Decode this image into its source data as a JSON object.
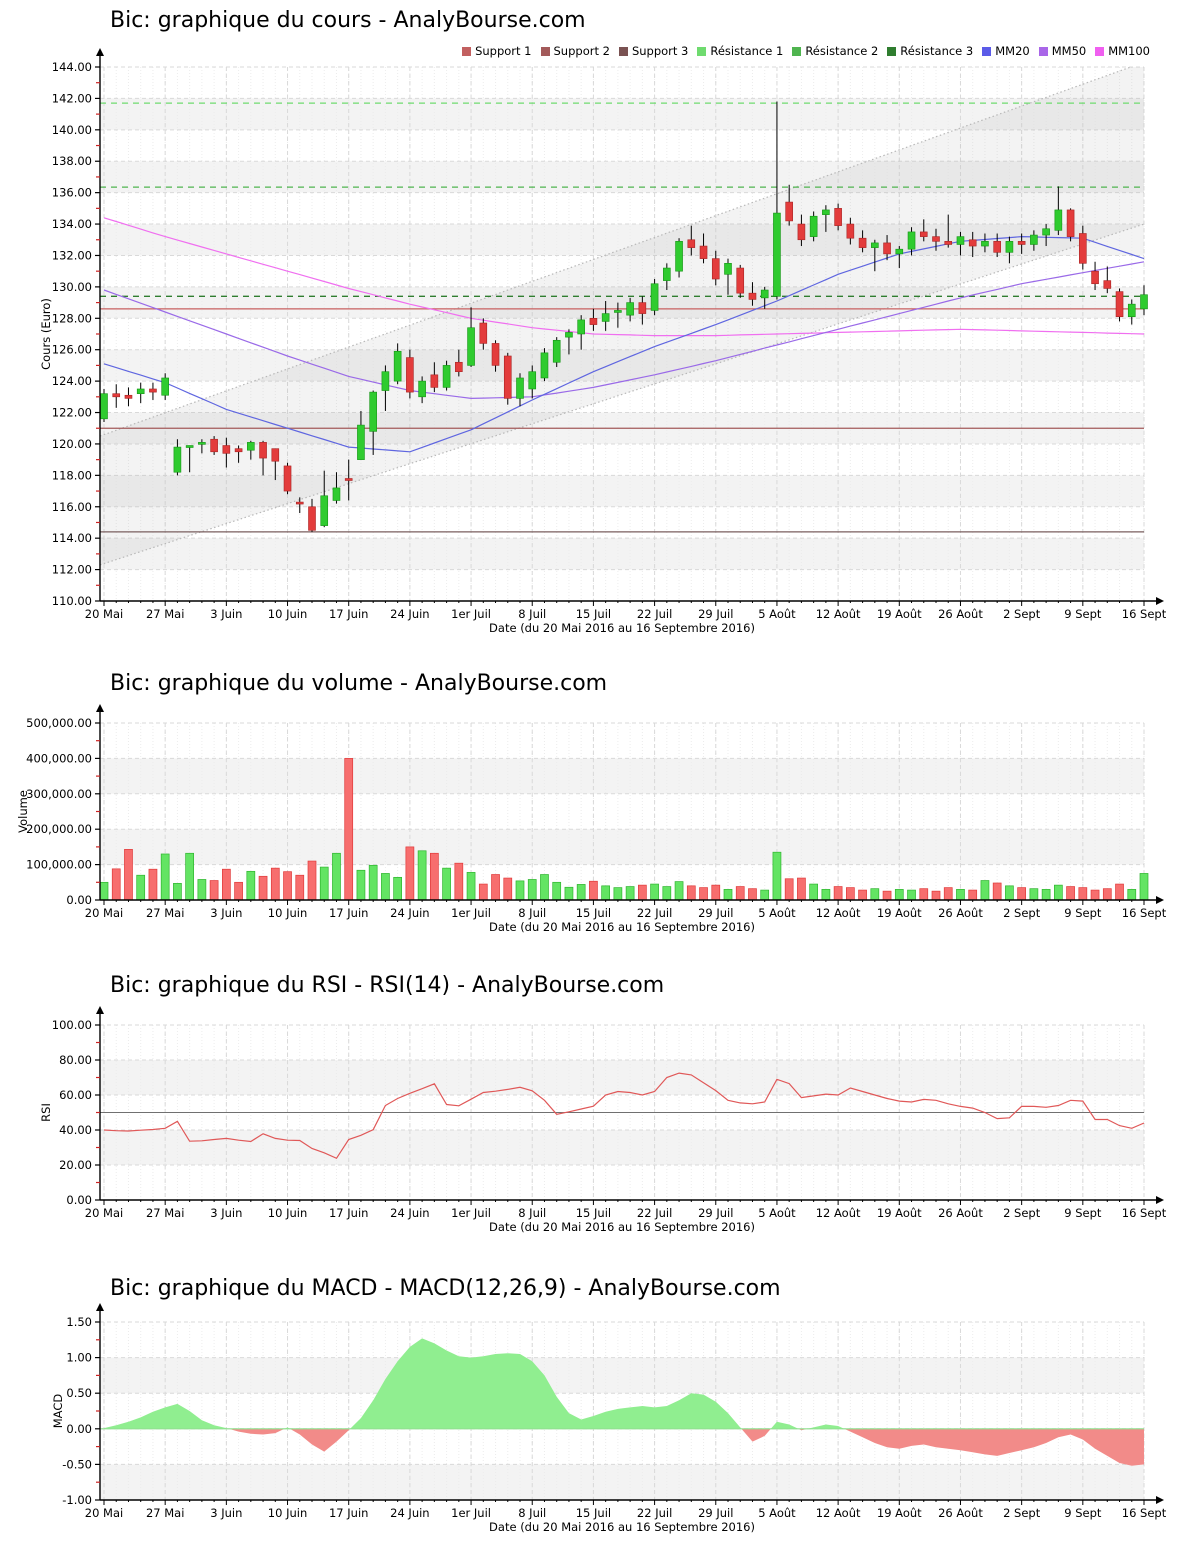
{
  "page": {
    "background": "#FFFFFF"
  },
  "axis": {
    "x_tick_labels": [
      "20 Mai",
      "27 Mai",
      "3 Juin",
      "10 Juin",
      "17 Juin",
      "24 Juin",
      "1er Juil",
      "8 Juil",
      "15 Juil",
      "22 Juil",
      "29 Juil",
      "5 Août",
      "12 Août",
      "19 Août",
      "26 Août",
      "2 Sept",
      "9 Sept",
      "16 Sept"
    ],
    "days_per_tick": 5,
    "xlabel": "Date (du 20 Mai 2016 au 16 Septembre 2016)"
  },
  "legend": {
    "items": [
      {
        "label": "Support 1",
        "color": "#C26060"
      },
      {
        "label": "Support 2",
        "color": "#A35A5A"
      },
      {
        "label": "Support 3",
        "color": "#7A5252"
      },
      {
        "label": "Résistance 1",
        "color": "#6FDB6F"
      },
      {
        "label": "Résistance 2",
        "color": "#4FB44F"
      },
      {
        "label": "Résistance 3",
        "color": "#2F7D2F"
      },
      {
        "label": "MM20",
        "color": "#5B5BE8"
      },
      {
        "label": "MM50",
        "color": "#A966E8"
      },
      {
        "label": "MM100",
        "color": "#F05FF0"
      }
    ]
  },
  "chart_data": [
    {
      "type": "candlestick",
      "title": "Bic: graphique du cours - AnalyBourse.com",
      "ylabel": "Cours (Euro)",
      "xlabel": "Date (du 20 Mai 2016 au 16 Septembre 2016)",
      "ylim": [
        110,
        144
      ],
      "ystep": 2,
      "shaded_bands": [
        [
          140,
          142
        ],
        [
          136,
          138
        ],
        [
          132,
          134
        ],
        [
          128,
          130
        ],
        [
          124,
          126
        ],
        [
          120,
          122
        ],
        [
          116,
          118
        ],
        [
          112,
          114
        ]
      ],
      "up_color": "#2FCB2F",
      "down_color": "#E33C3C",
      "ohlc": [
        [
          121.6,
          123.5,
          121.4,
          123.2
        ],
        [
          123.2,
          123.8,
          122.3,
          123.0
        ],
        [
          123.1,
          123.6,
          122.4,
          122.9
        ],
        [
          123.2,
          123.9,
          122.6,
          123.5
        ],
        [
          123.5,
          123.9,
          122.8,
          123.3
        ],
        [
          123.1,
          124.5,
          122.8,
          124.2
        ],
        [
          118.2,
          120.3,
          118.0,
          119.8
        ],
        [
          119.8,
          119.9,
          118.2,
          119.9
        ],
        [
          120.0,
          120.3,
          119.4,
          120.1
        ],
        [
          120.3,
          120.5,
          119.3,
          119.5
        ],
        [
          119.9,
          120.4,
          118.5,
          119.4
        ],
        [
          119.7,
          119.9,
          118.8,
          119.5
        ],
        [
          119.6,
          120.2,
          119.0,
          120.1
        ],
        [
          120.1,
          120.2,
          118.0,
          119.1
        ],
        [
          119.7,
          119.7,
          117.7,
          118.9
        ],
        [
          118.6,
          118.8,
          116.8,
          117.0
        ],
        [
          116.3,
          116.6,
          115.6,
          116.2
        ],
        [
          116.0,
          116.5,
          114.4,
          114.5
        ],
        [
          114.8,
          118.3,
          114.7,
          116.7
        ],
        [
          116.4,
          118.2,
          116.2,
          117.2
        ],
        [
          117.8,
          119.0,
          116.4,
          117.7
        ],
        [
          119.0,
          122.1,
          119.0,
          121.2
        ],
        [
          120.8,
          123.4,
          119.3,
          123.3
        ],
        [
          123.4,
          125.0,
          122.1,
          124.6
        ],
        [
          124.0,
          126.4,
          123.8,
          125.9
        ],
        [
          125.5,
          126.0,
          122.9,
          123.3
        ],
        [
          123.0,
          124.3,
          122.6,
          124.0
        ],
        [
          124.4,
          125.2,
          123.3,
          123.6
        ],
        [
          123.6,
          125.3,
          123.4,
          125.0
        ],
        [
          125.2,
          126.0,
          124.3,
          124.6
        ],
        [
          125.0,
          128.7,
          124.9,
          127.4
        ],
        [
          127.7,
          128.0,
          126.0,
          126.4
        ],
        [
          126.4,
          126.6,
          124.6,
          125.0
        ],
        [
          125.6,
          125.8,
          122.5,
          122.9
        ],
        [
          122.9,
          124.5,
          122.4,
          124.2
        ],
        [
          123.5,
          125.0,
          122.9,
          124.6
        ],
        [
          124.2,
          126.1,
          124.0,
          125.8
        ],
        [
          125.2,
          126.8,
          124.9,
          126.6
        ],
        [
          126.8,
          127.3,
          125.7,
          127.1
        ],
        [
          127.0,
          128.2,
          126.0,
          127.9
        ],
        [
          128.0,
          128.6,
          127.2,
          127.6
        ],
        [
          127.8,
          129.1,
          127.2,
          128.3
        ],
        [
          128.4,
          129.0,
          127.4,
          128.5
        ],
        [
          128.2,
          129.3,
          127.8,
          129.0
        ],
        [
          129.0,
          129.4,
          127.6,
          128.3
        ],
        [
          128.5,
          130.5,
          128.2,
          130.2
        ],
        [
          130.4,
          131.5,
          129.8,
          131.2
        ],
        [
          131.0,
          133.1,
          130.6,
          132.9
        ],
        [
          133.0,
          133.9,
          132.0,
          132.5
        ],
        [
          132.6,
          133.4,
          131.5,
          131.8
        ],
        [
          131.8,
          132.3,
          130.1,
          130.5
        ],
        [
          130.8,
          131.8,
          129.5,
          131.5
        ],
        [
          131.2,
          131.4,
          129.3,
          129.6
        ],
        [
          129.6,
          130.3,
          128.8,
          129.2
        ],
        [
          129.3,
          130.0,
          128.6,
          129.8
        ],
        [
          129.4,
          141.8,
          129.2,
          134.7
        ],
        [
          135.4,
          136.5,
          133.9,
          134.2
        ],
        [
          134.0,
          134.6,
          132.6,
          133.0
        ],
        [
          133.2,
          134.8,
          132.9,
          134.5
        ],
        [
          134.6,
          135.2,
          133.5,
          134.9
        ],
        [
          135.0,
          135.3,
          133.6,
          133.9
        ],
        [
          134.0,
          134.4,
          132.7,
          133.1
        ],
        [
          133.1,
          133.6,
          132.2,
          132.5
        ],
        [
          132.5,
          133.0,
          131.0,
          132.8
        ],
        [
          132.8,
          133.3,
          131.7,
          132.1
        ],
        [
          132.1,
          132.6,
          131.2,
          132.4
        ],
        [
          132.4,
          133.8,
          132.0,
          133.5
        ],
        [
          133.5,
          134.3,
          132.9,
          133.2
        ],
        [
          133.2,
          133.7,
          132.3,
          132.9
        ],
        [
          132.9,
          134.6,
          132.5,
          132.7
        ],
        [
          132.7,
          133.5,
          132.0,
          133.2
        ],
        [
          133.0,
          133.5,
          131.9,
          132.6
        ],
        [
          132.6,
          133.4,
          132.2,
          132.9
        ],
        [
          132.9,
          133.4,
          131.9,
          132.2
        ],
        [
          132.2,
          133.2,
          131.5,
          132.9
        ],
        [
          132.9,
          133.4,
          132.1,
          132.7
        ],
        [
          132.7,
          133.6,
          132.3,
          133.3
        ],
        [
          133.3,
          134.0,
          132.6,
          133.7
        ],
        [
          133.6,
          136.4,
          133.3,
          134.9
        ],
        [
          134.9,
          135.0,
          132.9,
          133.2
        ],
        [
          133.4,
          133.9,
          131.1,
          131.5
        ],
        [
          131.0,
          131.6,
          129.8,
          130.2
        ],
        [
          130.4,
          131.3,
          129.6,
          129.9
        ],
        [
          129.7,
          129.9,
          127.8,
          128.1
        ],
        [
          128.1,
          129.2,
          127.6,
          128.9
        ],
        [
          128.6,
          130.1,
          128.2,
          129.5
        ]
      ],
      "overlays": {
        "supports": [
          {
            "label": "Support 1",
            "value": 128.6,
            "color": "#C86060"
          },
          {
            "label": "Support 2",
            "value": 121.0,
            "color": "#A35A5A"
          },
          {
            "label": "Support 3",
            "value": 114.4,
            "color": "#7A5F5F"
          }
        ],
        "resistances": [
          {
            "label": "Résistance 1",
            "value": 141.7,
            "color": "#6FDB6F"
          },
          {
            "label": "Résistance 2",
            "value": 136.35,
            "color": "#4FB44F"
          },
          {
            "label": "Résistance 3",
            "value": 129.4,
            "color": "#2F7D2F"
          }
        ],
        "mm20": {
          "label": "MM20",
          "color": "#5F66E0",
          "weekly_values": [
            125.1,
            123.9,
            122.2,
            121.0,
            119.8,
            119.5,
            120.9,
            122.8,
            124.6,
            126.2,
            127.6,
            129.1,
            130.8,
            132.1,
            132.9,
            133.2,
            133.1,
            131.8
          ]
        },
        "mm50": {
          "label": "MM50",
          "color": "#9A6AE8",
          "weekly_values": [
            129.8,
            128.4,
            127.0,
            125.6,
            124.3,
            123.4,
            122.9,
            123.0,
            123.6,
            124.4,
            125.3,
            126.3,
            127.3,
            128.3,
            129.3,
            130.2,
            130.9,
            131.6
          ]
        },
        "mm100": {
          "label": "MM100",
          "color": "#F06FF0",
          "weekly_values": [
            134.4,
            133.2,
            132.1,
            131.0,
            129.9,
            128.9,
            128.0,
            127.4,
            127.0,
            126.9,
            126.9,
            127.0,
            127.1,
            127.2,
            127.3,
            127.2,
            127.1,
            127.0
          ]
        },
        "trend_channel": {
          "color": "#B8B8B8",
          "fill": "rgba(170,170,170,0.14)",
          "lines": [
            {
              "start_value": 112.3,
              "end_value": 134.0
            },
            {
              "start_value": 120.5,
              "end_value": 144.3
            }
          ]
        }
      }
    },
    {
      "type": "bar",
      "title": "Bic: graphique du volume - AnalyBourse.com",
      "ylabel": "Volume",
      "xlabel": "Date (du 20 Mai 2016 au 16 Septembre 2016)",
      "ylim": [
        0,
        500000
      ],
      "ystep": 100000,
      "shaded_bands": [
        [
          100000,
          200000
        ],
        [
          300000,
          400000
        ]
      ],
      "up_color": "#63E463",
      "up_stroke": "#2FB52F",
      "down_color": "#F76E6E",
      "down_stroke": "#E03A3A",
      "values": [
        50000,
        88000,
        143000,
        70000,
        87000,
        130000,
        47000,
        132000,
        58000,
        55000,
        87000,
        50000,
        81000,
        67000,
        90000,
        80000,
        70000,
        110000,
        93000,
        132000,
        400000,
        84000,
        98000,
        75000,
        64000,
        150000,
        139000,
        132000,
        90000,
        104000,
        78000,
        45000,
        72000,
        62000,
        54000,
        58000,
        72000,
        50000,
        36000,
        44000,
        53000,
        40000,
        35000,
        38000,
        42000,
        45000,
        38000,
        52000,
        40000,
        35000,
        42000,
        30000,
        38000,
        32000,
        28000,
        135000,
        60000,
        62000,
        45000,
        30000,
        38000,
        35000,
        28000,
        32000,
        25000,
        30000,
        28000,
        32000,
        25000,
        35000,
        30000,
        28000,
        55000,
        48000,
        40000,
        35000,
        32000,
        30000,
        42000,
        38000,
        35000,
        28000,
        32000,
        45000,
        30000,
        75000
      ]
    },
    {
      "type": "line",
      "title": "Bic: graphique du RSI - RSI(14) - AnalyBourse.com",
      "ylabel": "RSI",
      "xlabel": "Date (du 20 Mai 2016 au 16 Septembre 2016)",
      "ylim": [
        0,
        100
      ],
      "ystep": 20,
      "shaded_bands": [
        [
          20,
          40
        ],
        [
          60,
          80
        ]
      ],
      "line_color": "#E05858",
      "midline": {
        "value": 50,
        "color": "#707070"
      },
      "values": [
        40,
        39.6,
        39.4,
        39.9,
        40.3,
        41,
        45,
        33.6,
        33.8,
        34.6,
        35.2,
        34.2,
        33.4,
        37.8,
        35.2,
        34.2,
        34,
        29.4,
        27,
        23.8,
        34.6,
        37,
        40.2,
        54,
        58,
        61,
        63.6,
        66.4,
        54.6,
        53.8,
        57.6,
        61.4,
        62.2,
        63.2,
        64.4,
        62.4,
        57,
        49,
        50.4,
        52,
        53.6,
        60,
        62,
        61.4,
        60,
        62,
        70,
        72.5,
        71.5,
        67,
        62.5,
        57,
        55.5,
        55,
        56,
        69,
        66.5,
        58.5,
        59.5,
        60.5,
        60,
        64,
        62,
        60,
        58,
        56.5,
        56,
        57.5,
        57,
        55,
        53.5,
        52.5,
        50,
        46.5,
        47,
        53.5,
        53.5,
        53,
        54,
        57,
        56.5,
        46,
        46,
        42.5,
        41,
        44
      ]
    },
    {
      "type": "area",
      "title": "Bic: graphique du MACD - MACD(12,26,9) - AnalyBourse.com",
      "ylabel": "MACD",
      "xlabel": "Date (du 20 Mai 2016 au 16 Septembre 2016)",
      "ylim": [
        -1,
        1.5
      ],
      "ystep": 0.5,
      "shaded_bands": [
        [
          0.5,
          1.0
        ],
        [
          -1.0,
          -0.5
        ]
      ],
      "pos_color": "#90EE90",
      "neg_color": "#F28B89",
      "zero_line_color": "#8FE08F",
      "values": [
        0.01,
        0.05,
        0.1,
        0.16,
        0.24,
        0.3,
        0.35,
        0.25,
        0.12,
        0.05,
        0.01,
        -0.04,
        -0.07,
        -0.08,
        -0.06,
        0.02,
        -0.08,
        -0.22,
        -0.32,
        -0.18,
        -0.02,
        0.15,
        0.4,
        0.7,
        0.95,
        1.15,
        1.27,
        1.2,
        1.1,
        1.02,
        1.0,
        1.02,
        1.05,
        1.06,
        1.05,
        0.95,
        0.75,
        0.45,
        0.22,
        0.13,
        0.18,
        0.24,
        0.28,
        0.3,
        0.32,
        0.3,
        0.32,
        0.4,
        0.5,
        0.48,
        0.38,
        0.22,
        0.02,
        -0.18,
        -0.1,
        0.1,
        0.06,
        -0.02,
        0.02,
        0.06,
        0.04,
        -0.04,
        -0.12,
        -0.2,
        -0.26,
        -0.28,
        -0.24,
        -0.22,
        -0.26,
        -0.28,
        -0.3,
        -0.33,
        -0.36,
        -0.38,
        -0.34,
        -0.3,
        -0.26,
        -0.2,
        -0.12,
        -0.08,
        -0.15,
        -0.28,
        -0.38,
        -0.48,
        -0.52,
        -0.5
      ]
    }
  ]
}
